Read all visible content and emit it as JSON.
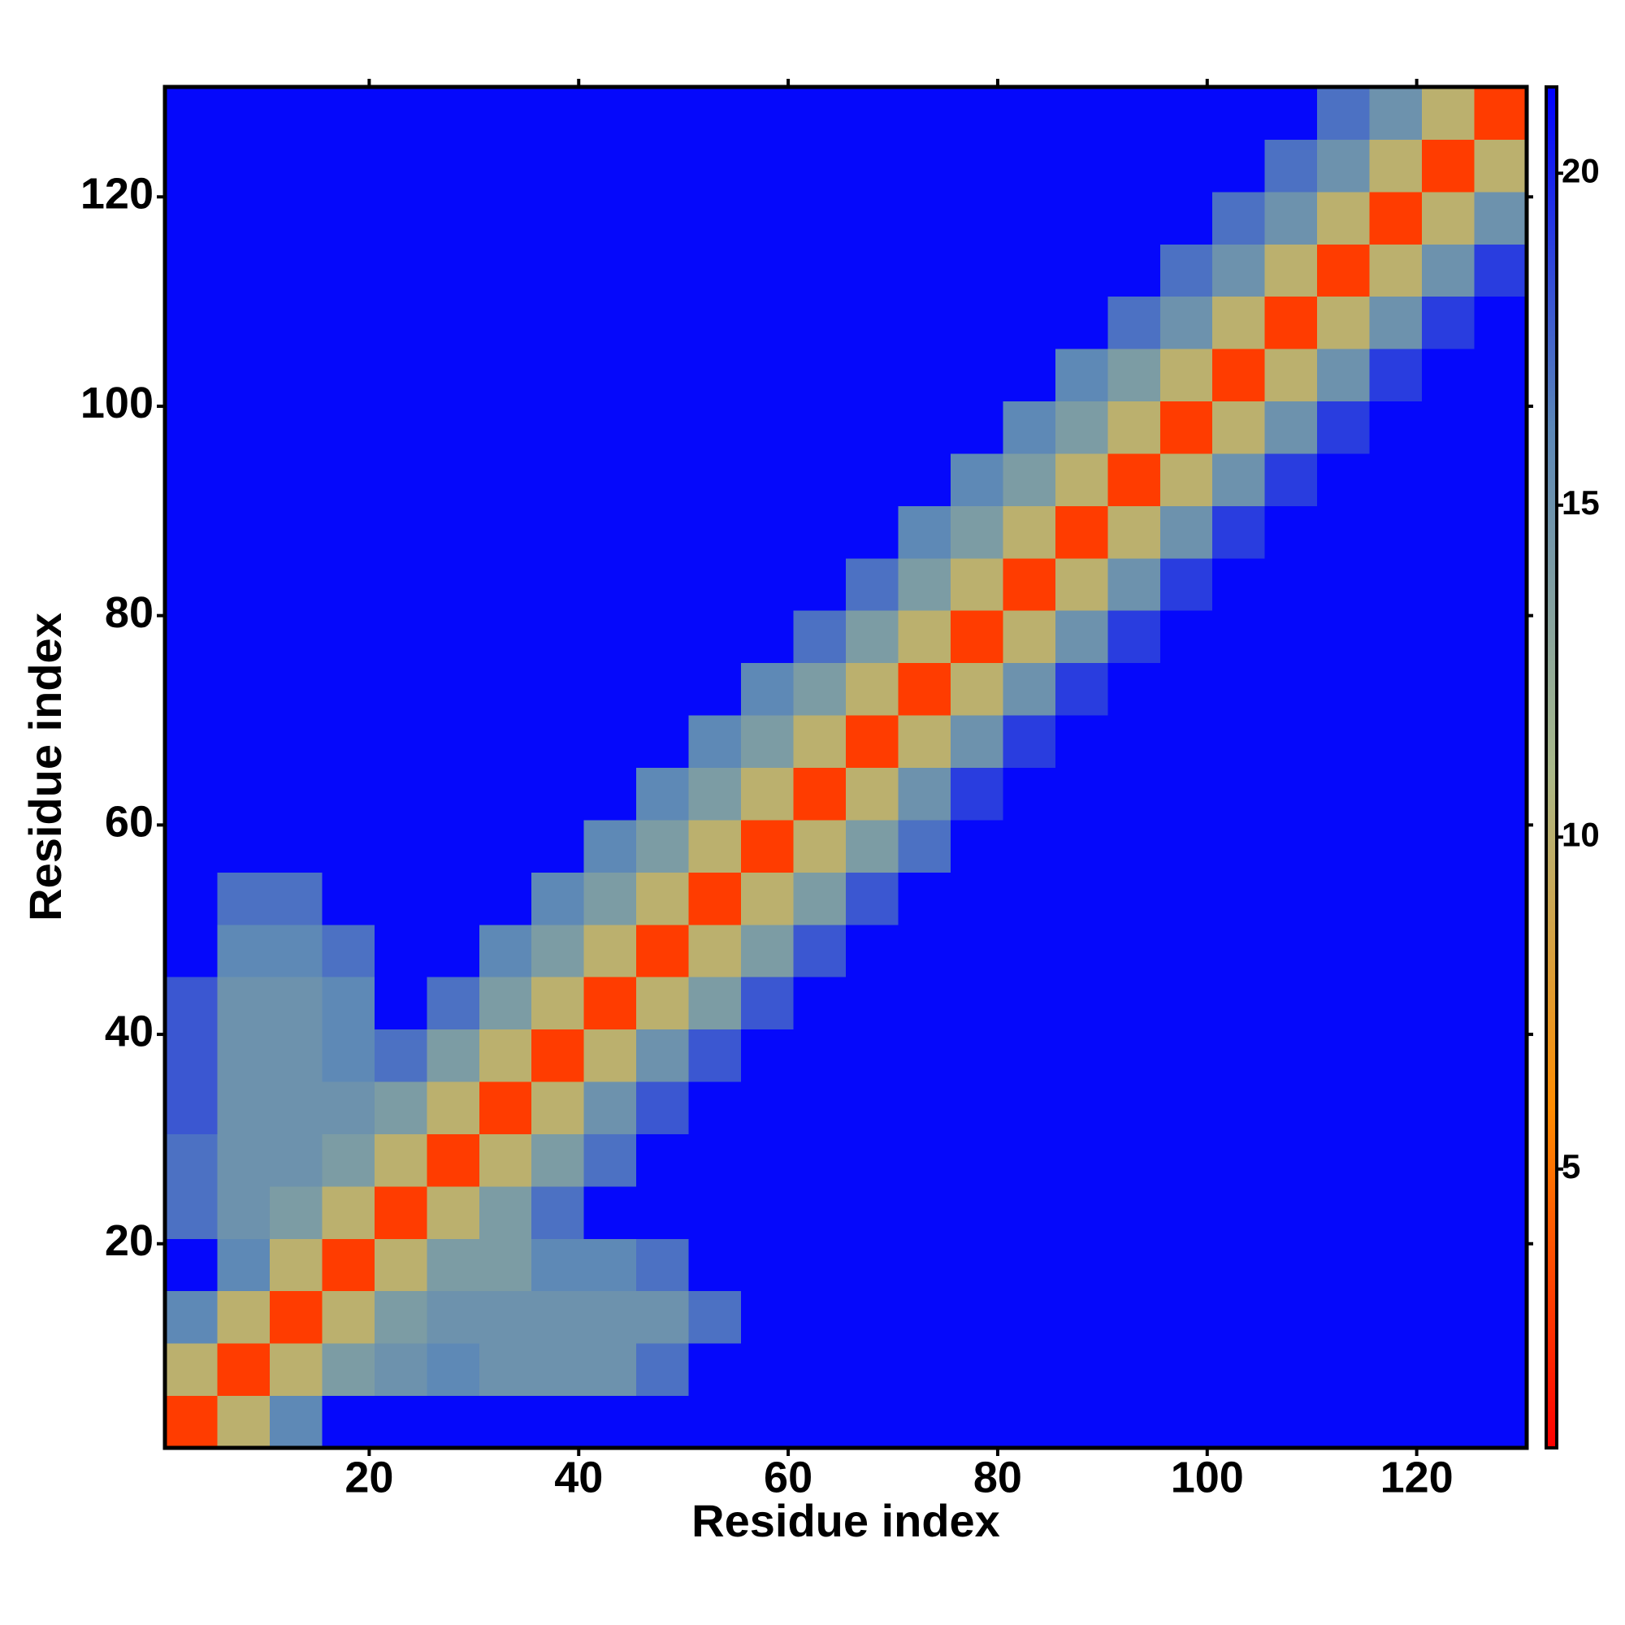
{
  "chart_data": {
    "type": "heatmap",
    "x_label": "Residue index",
    "y_label": "Residue index",
    "x": [
      3,
      8,
      13,
      18,
      23,
      28,
      33,
      38,
      43,
      48,
      53,
      58,
      63,
      68,
      73,
      78,
      83,
      88,
      93,
      98,
      103,
      108,
      113,
      118,
      123,
      128
    ],
    "y": [
      3,
      8,
      13,
      18,
      23,
      28,
      33,
      38,
      43,
      48,
      53,
      58,
      63,
      68,
      73,
      78,
      83,
      88,
      93,
      98,
      103,
      108,
      113,
      118,
      123,
      128
    ],
    "z": [
      [
        3,
        10,
        16,
        21,
        21,
        21,
        21,
        21,
        21,
        21,
        21,
        21,
        21,
        21,
        21,
        21,
        21,
        21,
        21,
        21,
        21,
        21,
        21,
        21,
        21,
        21
      ],
      [
        10,
        3,
        10,
        14,
        15,
        16,
        15,
        15,
        15,
        17,
        21,
        21,
        21,
        21,
        21,
        21,
        21,
        21,
        21,
        21,
        21,
        21,
        21,
        21,
        21,
        21
      ],
      [
        16,
        10,
        3,
        10,
        14,
        15,
        15,
        15,
        15,
        15,
        17,
        21,
        21,
        21,
        21,
        21,
        21,
        21,
        21,
        21,
        21,
        21,
        21,
        21,
        21,
        21
      ],
      [
        21,
        16,
        10,
        3,
        10,
        14,
        14,
        16,
        16,
        17,
        21,
        21,
        21,
        21,
        21,
        21,
        21,
        21,
        21,
        21,
        21,
        21,
        21,
        21,
        21,
        21
      ],
      [
        17,
        15,
        14,
        10,
        3,
        10,
        14,
        17,
        21,
        21,
        21,
        21,
        21,
        21,
        21,
        21,
        21,
        21,
        21,
        21,
        21,
        21,
        21,
        21,
        21,
        21
      ],
      [
        17,
        15,
        15,
        14,
        10,
        3,
        10,
        14,
        17,
        21,
        21,
        21,
        21,
        21,
        21,
        21,
        21,
        21,
        21,
        21,
        21,
        21,
        21,
        21,
        21,
        21
      ],
      [
        18,
        15,
        15,
        15,
        14,
        10,
        3,
        10,
        15,
        18,
        21,
        21,
        21,
        21,
        21,
        21,
        21,
        21,
        21,
        21,
        21,
        21,
        21,
        21,
        21,
        21
      ],
      [
        18,
        15,
        15,
        16,
        17,
        14,
        10,
        3,
        10,
        15,
        18,
        21,
        21,
        21,
        21,
        21,
        21,
        21,
        21,
        21,
        21,
        21,
        21,
        21,
        21,
        21
      ],
      [
        18,
        15,
        15,
        16,
        21,
        17,
        14,
        10,
        3,
        10,
        14,
        18,
        21,
        21,
        21,
        21,
        21,
        21,
        21,
        21,
        21,
        21,
        21,
        21,
        21,
        21
      ],
      [
        21,
        16,
        16,
        17,
        21,
        21,
        16,
        14,
        10,
        3,
        10,
        14,
        18,
        21,
        21,
        21,
        21,
        21,
        21,
        21,
        21,
        21,
        21,
        21,
        21,
        21
      ],
      [
        21,
        17,
        17,
        21,
        21,
        21,
        21,
        16,
        14,
        10,
        3,
        10,
        14,
        18,
        21,
        21,
        21,
        21,
        21,
        21,
        21,
        21,
        21,
        21,
        21,
        21
      ],
      [
        21,
        21,
        21,
        21,
        21,
        21,
        21,
        21,
        16,
        14,
        10,
        3,
        10,
        14,
        17,
        21,
        21,
        21,
        21,
        21,
        21,
        21,
        21,
        21,
        21,
        21
      ],
      [
        21,
        21,
        21,
        21,
        21,
        21,
        21,
        21,
        21,
        16,
        14,
        10,
        3,
        10,
        15,
        19,
        21,
        21,
        21,
        21,
        21,
        21,
        21,
        21,
        21,
        21
      ],
      [
        21,
        21,
        21,
        21,
        21,
        21,
        21,
        21,
        21,
        21,
        16,
        14,
        10,
        3,
        10,
        15,
        19,
        21,
        21,
        21,
        21,
        21,
        21,
        21,
        21,
        21
      ],
      [
        21,
        21,
        21,
        21,
        21,
        21,
        21,
        21,
        21,
        21,
        21,
        16,
        14,
        10,
        3,
        10,
        15,
        19,
        21,
        21,
        21,
        21,
        21,
        21,
        21,
        21
      ],
      [
        21,
        21,
        21,
        21,
        21,
        21,
        21,
        21,
        21,
        21,
        21,
        21,
        17,
        14,
        10,
        3,
        10,
        15,
        19,
        21,
        21,
        21,
        21,
        21,
        21,
        21
      ],
      [
        21,
        21,
        21,
        21,
        21,
        21,
        21,
        21,
        21,
        21,
        21,
        21,
        21,
        17,
        14,
        10,
        3,
        10,
        15,
        19,
        21,
        21,
        21,
        21,
        21,
        21
      ],
      [
        21,
        21,
        21,
        21,
        21,
        21,
        21,
        21,
        21,
        21,
        21,
        21,
        21,
        21,
        16,
        14,
        10,
        3,
        10,
        15,
        19,
        21,
        21,
        21,
        21,
        21
      ],
      [
        21,
        21,
        21,
        21,
        21,
        21,
        21,
        21,
        21,
        21,
        21,
        21,
        21,
        21,
        21,
        16,
        14,
        10,
        3,
        10,
        15,
        19,
        21,
        21,
        21,
        21
      ],
      [
        21,
        21,
        21,
        21,
        21,
        21,
        21,
        21,
        21,
        21,
        21,
        21,
        21,
        21,
        21,
        21,
        16,
        14,
        10,
        3,
        10,
        15,
        19,
        21,
        21,
        21
      ],
      [
        21,
        21,
        21,
        21,
        21,
        21,
        21,
        21,
        21,
        21,
        21,
        21,
        21,
        21,
        21,
        21,
        21,
        16,
        14,
        10,
        3,
        10,
        15,
        19,
        21,
        21
      ],
      [
        21,
        21,
        21,
        21,
        21,
        21,
        21,
        21,
        21,
        21,
        21,
        21,
        21,
        21,
        21,
        21,
        21,
        21,
        17,
        15,
        10,
        3,
        10,
        15,
        19,
        21
      ],
      [
        21,
        21,
        21,
        21,
        21,
        21,
        21,
        21,
        21,
        21,
        21,
        21,
        21,
        21,
        21,
        21,
        21,
        21,
        21,
        17,
        15,
        10,
        3,
        10,
        15,
        19
      ],
      [
        21,
        21,
        21,
        21,
        21,
        21,
        21,
        21,
        21,
        21,
        21,
        21,
        21,
        21,
        21,
        21,
        21,
        21,
        21,
        21,
        17,
        15,
        10,
        3,
        10,
        15
      ],
      [
        21,
        21,
        21,
        21,
        21,
        21,
        21,
        21,
        21,
        21,
        21,
        21,
        21,
        21,
        21,
        21,
        21,
        21,
        21,
        21,
        21,
        17,
        15,
        10,
        3,
        10
      ],
      [
        21,
        21,
        21,
        21,
        21,
        21,
        21,
        21,
        21,
        21,
        21,
        21,
        21,
        21,
        21,
        21,
        21,
        21,
        21,
        21,
        21,
        21,
        17,
        15,
        10,
        3
      ]
    ],
    "xlim": [
      0.5,
      130.5
    ],
    "ylim": [
      0.5,
      130.5
    ],
    "xticks": [
      20,
      40,
      60,
      80,
      100,
      120
    ],
    "yticks": [
      20,
      40,
      60,
      80,
      100,
      120
    ],
    "zlim": [
      0.8,
      21.3
    ],
    "zticks": [
      5,
      10,
      15,
      20
    ],
    "colors": [
      "#ff0000",
      "#ff8c00",
      "#a9b98a",
      "#5b87b8",
      "#0000ff"
    ]
  }
}
